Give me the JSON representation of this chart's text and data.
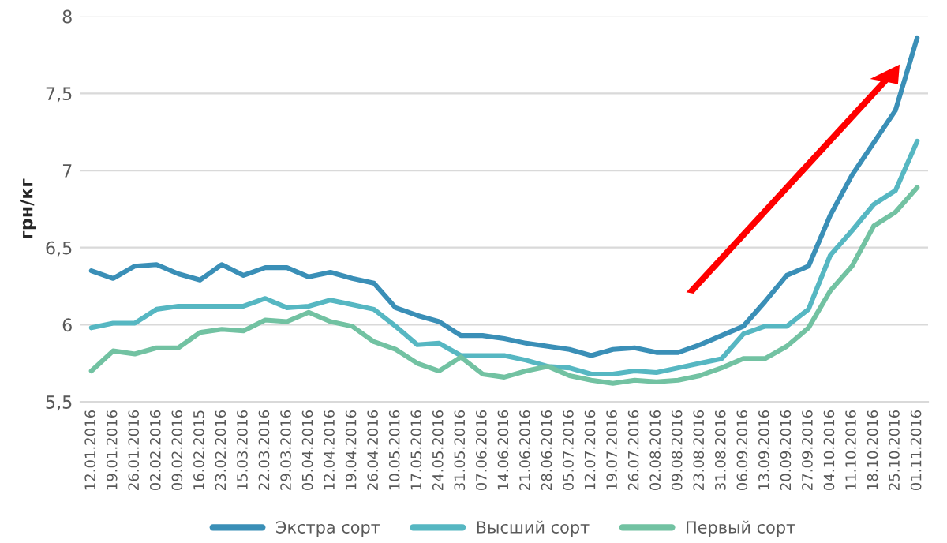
{
  "chart_data": {
    "type": "line",
    "ylabel": "грн/кг",
    "categories": [
      "12.01.2016",
      "19.01.2016",
      "26.01.2016",
      "02.02.2016",
      "09.02.2016",
      "16.02.2015",
      "23.02.2016",
      "15.03.2016",
      "22.03.2016",
      "29.03.2016",
      "05.04.2016",
      "12.04.2016",
      "19.04.2016",
      "26.04.2016",
      "10.05.2016",
      "17.05.2016",
      "24.05.2016",
      "31.05.2016",
      "07.06.2016",
      "14.06.2016",
      "21.06.2016",
      "28.06.2016",
      "05.07.2016",
      "12.07.2016",
      "19.07.2016",
      "26.07.2016",
      "02.08.2016",
      "09.08.2016",
      "23.08.2016",
      "31.08.2016",
      "06.09.2016",
      "13.09.2016",
      "20.09.2016",
      "27.09.2016",
      "04.10.2016",
      "11.10.2016",
      "18.10.2016",
      "25.10.2016",
      "01.11.2016"
    ],
    "series": [
      {
        "name": "Экстра сорт",
        "color": "#3a8fb7",
        "values": [
          6.35,
          6.3,
          6.38,
          6.39,
          6.33,
          6.29,
          6.39,
          6.32,
          6.37,
          6.37,
          6.31,
          6.34,
          6.3,
          6.27,
          6.11,
          6.06,
          6.02,
          5.93,
          5.93,
          5.91,
          5.88,
          5.86,
          5.84,
          5.8,
          5.84,
          5.85,
          5.82,
          5.82,
          5.87,
          5.93,
          5.99,
          6.15,
          6.32,
          6.38,
          6.71,
          6.97,
          7.18,
          7.39,
          7.86
        ]
      },
      {
        "name": "Высший сорт",
        "color": "#56b7c2",
        "values": [
          5.98,
          6.01,
          6.01,
          6.1,
          6.12,
          6.12,
          6.12,
          6.12,
          6.17,
          6.11,
          6.12,
          6.16,
          6.13,
          6.1,
          5.99,
          5.87,
          5.88,
          5.8,
          5.8,
          5.8,
          5.77,
          5.73,
          5.72,
          5.68,
          5.68,
          5.7,
          5.69,
          5.72,
          5.75,
          5.78,
          5.94,
          5.99,
          5.99,
          6.1,
          6.45,
          6.61,
          6.78,
          6.87,
          7.19
        ]
      },
      {
        "name": "Первый сорт",
        "color": "#72c2a2",
        "values": [
          5.7,
          5.83,
          5.81,
          5.85,
          5.85,
          5.95,
          5.97,
          5.96,
          6.03,
          6.02,
          6.08,
          6.02,
          5.99,
          5.89,
          5.84,
          5.75,
          5.7,
          5.79,
          5.68,
          5.66,
          5.7,
          5.73,
          5.67,
          5.64,
          5.62,
          5.64,
          5.63,
          5.64,
          5.67,
          5.72,
          5.78,
          5.78,
          5.86,
          5.98,
          6.22,
          6.38,
          6.64,
          6.73,
          6.89
        ]
      }
    ],
    "ylim": [
      5.5,
      8
    ],
    "yticks": [
      {
        "value": 5.5,
        "label": "5,5"
      },
      6,
      {
        "value": 6.5,
        "label": "6,5"
      },
      7,
      {
        "value": 7.5,
        "label": "7,5"
      },
      8
    ],
    "grid": "y",
    "legend": "bottom",
    "marker": "none",
    "line_style": "solid"
  }
}
